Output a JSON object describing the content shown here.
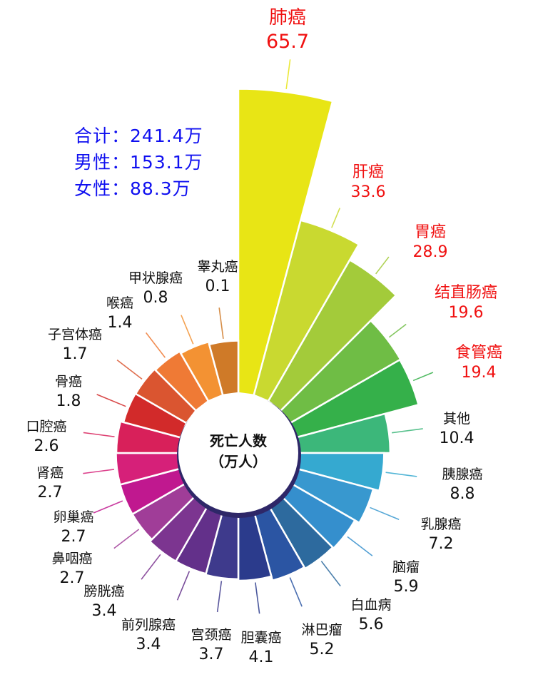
{
  "summary": [
    {
      "label": "合计：",
      "value": "241.4万"
    },
    {
      "label": "男性：",
      "value": "153.1万"
    },
    {
      "label": "女性：",
      "value": "88.3万"
    }
  ],
  "chart_data": {
    "type": "polar-bar",
    "center_label": [
      "死亡人数",
      "（万人）"
    ],
    "unit": "万人",
    "categories": [
      "肺癌",
      "肝癌",
      "胃癌",
      "结直肠癌",
      "食管癌",
      "其他",
      "胰腺癌",
      "乳腺癌",
      "脑瘤",
      "白血病",
      "淋巴瘤",
      "胆囊癌",
      "宫颈癌",
      "前列腺癌",
      "膀胱癌",
      "鼻咽癌",
      "卵巢癌",
      "肾癌",
      "口腔癌",
      "骨癌",
      "子宫体癌",
      "喉癌",
      "甲状腺癌",
      "睾丸癌"
    ],
    "values": [
      65.7,
      33.6,
      28.9,
      19.6,
      19.4,
      10.4,
      8.8,
      7.2,
      5.9,
      5.6,
      5.2,
      4.1,
      3.7,
      3.4,
      3.4,
      2.7,
      2.7,
      2.7,
      2.6,
      1.8,
      1.7,
      1.4,
      0.8,
      0.1
    ],
    "value_labels": [
      "65.7",
      "33.6",
      "28.9",
      "19.6",
      "19.4",
      "10.4",
      "8.8",
      "7.2",
      "5.9",
      "5.6",
      "5.2",
      "4.1",
      "3.7",
      "3.4",
      "3.4",
      "2.7",
      "2.7",
      "2.7",
      "2.6",
      "1.8",
      "1.7",
      "1.4",
      "0.8",
      "0.1"
    ],
    "highlighted_count": 5,
    "colors": [
      "#e8e515",
      "#c9d930",
      "#a3cb3a",
      "#6fbd45",
      "#35b04a",
      "#3cb77a",
      "#35a9d0",
      "#3898cf",
      "#358fcd",
      "#2d6a9e",
      "#2b55a3",
      "#2b3b8c",
      "#3e3a8c",
      "#63308a",
      "#7c3590",
      "#a03d98",
      "#c0188f",
      "#d62079",
      "#d8205a",
      "#d22a2a",
      "#da5530",
      "#ef7a35",
      "#f39233",
      "#cf7a28"
    ],
    "highlight_color": "#f01010",
    "summary_color": "#1010f0"
  }
}
